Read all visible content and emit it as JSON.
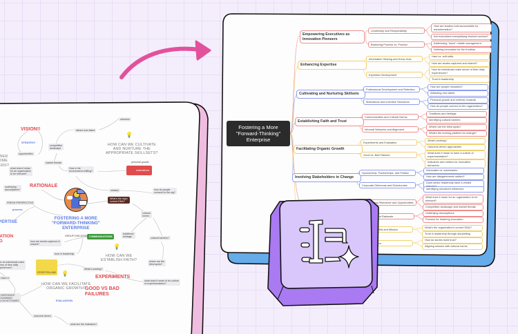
{
  "right_map": {
    "central_topic": "Fostering a More \"Forward-Thinking\" Enterprise",
    "branches": [
      {
        "label": "Empowering Executives as Innovation Pioneers",
        "color": "#ef8d8d",
        "subtopics": [
          {
            "label": "Leadership and Responsibility",
            "questions": [
              "How are leaders held accountable for transformation?",
              "Are executives exemplifying desired conduct?"
            ]
          },
          {
            "label": "Balancing Process vs. Product",
            "questions": [
              "Addressing \"stuck\" middle management",
              "Defining innovation for the frontline"
            ]
          }
        ]
      },
      {
        "label": "Enhancing Expertise",
        "color": "#f2cf6e",
        "subtopics": [
          {
            "label": "Information Sharing and Know-How",
            "questions": [
              "Hard vs. soft skills",
              "How are stories captured and shared?"
            ]
          },
          {
            "label": "Expertise Development",
            "questions": [
              "How do individuals make sense of their daily experiences?",
              "Trust in leadership"
            ]
          }
        ]
      },
      {
        "label": "Cultivating and Nurturing Skillsets",
        "color": "#8d9cf0",
        "subtopics": [
          {
            "label": "Professional Development and Retention",
            "questions": [
              "How are people rewarded?",
              "Attracting new talent"
            ]
          },
          {
            "label": "Motivations and Incentive Structures",
            "questions": [
              "Personal growth and extrinsic rewards",
              "How do people connect to the organization?"
            ]
          }
        ]
      },
      {
        "label": "Establishing Faith and Trust",
        "color": "#ef8d8d",
        "subtopics": [
          {
            "label": "Communication and Cultural Norms",
            "questions": [
              "Traditions and heritage",
              "Identifying cultural barriers"
            ]
          },
          {
            "label": "Informal Networks and Alignment",
            "questions": [
              "Where are the blind spots?",
              "What's the burning platform for change?"
            ]
          }
        ]
      },
      {
        "label": "Facilitating Organic Growth",
        "color": "#f2cf6e",
        "subtopics": [
          {
            "label": "Experiments and Evaluation",
            "questions": [
              "What's working?",
              "Outcome-driven approaches"
            ]
          },
          {
            "label": "Good vs. Bad Failures",
            "questions": [
              "What does it mean to have a culture of experimentation?",
              "Indicators and metrics for innovative behaviors"
            ]
          }
        ]
      },
      {
        "label": "Involving Stakeholders in Change",
        "color": "#8d9cf0",
        "subtopics": [
          {
            "label": "Sponsorship, Partnerships, and Politics",
            "questions": [
              "Advocates vs. adversaries",
              "How are disagreements settled?"
            ]
          },
          {
            "label": "Corporate Dilemmas and Dichotomies",
            "questions": [
              "Does senior leadership have a vested interest?",
              "Identifying unnoticed influences"
            ]
          }
        ]
      },
      {
        "label": "",
        "color": "#ef8d8d",
        "subtopics": [
          {
            "label": "Understanding Relevance and Opportunities",
            "questions": [
              "What does it mean for an organization to be relevant?",
              "Competitive landscape and market threats"
            ]
          },
          {
            "label": "Perspectives and Rationale",
            "questions": [
              "Underlying assumptions",
              "Process for fostering innovation"
            ]
          }
        ]
      },
      {
        "label": "",
        "color": "#f2cf6e",
        "subtopics": [
          {
            "label": "Organizational DNA and Mission",
            "questions": [
              "What's the organization's current DNA?",
              "Trust in leadership through storytelling"
            ]
          },
          {
            "label": "ation and Tradition",
            "questions": [
              "How do stories build trust?",
              "Aligning mission with cultural norms"
            ]
          }
        ]
      }
    ]
  },
  "left_map": {
    "nodes": [
      {
        "text": "VISION!!",
        "style": "red-heading"
      },
      {
        "text": "STRATEGY",
        "style": "blue-label"
      },
      {
        "text": "WER\nOME\nERS?",
        "style": "question"
      },
      {
        "text": "opportunities",
        "style": "gray"
      },
      {
        "text": "competitive\nlandscape",
        "style": "gray"
      },
      {
        "text": "attract new talent",
        "style": "gray"
      },
      {
        "text": "retention",
        "style": "gray"
      },
      {
        "text": "market threats",
        "style": "gray"
      },
      {
        "text": "what does it mean\nfor an organization\nto be relevant?",
        "style": "gray"
      },
      {
        "text": "How is the\nenvironment shifting?",
        "style": "gray"
      },
      {
        "text": "HOW CAN WE CULTIVATE\nAND NURTURE THE\nAPPROPRIATE SKILLSETS?",
        "style": "question"
      },
      {
        "text": "personal growth",
        "style": "plain"
      },
      {
        "text": "motivations",
        "style": "red-box"
      },
      {
        "text": "underlying\nassumptions?",
        "style": "gray"
      },
      {
        "text": "RATIONALE",
        "style": "red-heading"
      },
      {
        "text": "mission",
        "style": "gray"
      },
      {
        "text": "how do people\nconnect to the org?",
        "style": "gray"
      },
      {
        "text": "What's the org's\ncurrent DNA?",
        "style": "brown-box"
      },
      {
        "text": "FRESH PERSPECTIVE",
        "style": "gray"
      },
      {
        "text": "process",
        "style": "blue-label"
      },
      {
        "text": "cultural\nnorms",
        "style": "gray"
      },
      {
        "text": "FOSTERING A MORE\n\"FORWARD-THINKING\"\nENTERPRISE",
        "style": "central"
      },
      {
        "text": "PERTISE",
        "style": "blue-heading"
      },
      {
        "text": "GROUP DISCUSSION",
        "style": "plain"
      },
      {
        "text": "COMMUNICATIONS",
        "style": "green-box"
      },
      {
        "text": "traditions/\nheritage",
        "style": "gray"
      },
      {
        "text": "MATION\nNG",
        "style": "red-heading"
      },
      {
        "text": "how are stories captured &\nshared?",
        "style": "gray"
      },
      {
        "text": "cultural barriers?",
        "style": "gray"
      },
      {
        "text": "trust in leadership",
        "style": "gray"
      },
      {
        "text": "HOW CAN WE\nESTABLISH FAITH?",
        "style": "question"
      },
      {
        "text": "w do individuals make\nnse of their daily\nperiences?",
        "style": "gray"
      },
      {
        "text": "where are the\nblind spots?",
        "style": "gray"
      },
      {
        "text": "STORYTELLING",
        "style": "yellow-box"
      },
      {
        "text": "What's working?",
        "style": "gray"
      },
      {
        "text": "EXPERIMENTS",
        "style": "red-heading"
      },
      {
        "text": "HOW CAN WE FACILITATE\nORGANIC GROWTH?",
        "style": "question"
      },
      {
        "text": "what does it mean to be culture\nof experimentation?",
        "style": "gray"
      },
      {
        "text": "ip have a",
        "style": "gray"
      },
      {
        "text": "GOOD VS BAD\nFAILURES",
        "style": "red-heading"
      },
      {
        "text": "CORPORATE\nDILEMMAS\n& DICHOTOMIES",
        "style": "gray"
      },
      {
        "text": "EVALUATION",
        "style": "blue-label"
      },
      {
        "text": "outcome-driven",
        "style": "gray"
      },
      {
        "text": "what are the indicators?",
        "style": "gray"
      }
    ]
  },
  "colors": {
    "background": "#f4eefc",
    "arrow": "#e2529c",
    "left_card_side": "#f0bde0",
    "right_card_side": "#66abea",
    "keycap_top": "#d9c6fb",
    "keycap_side": "#a97af2"
  },
  "icons": [
    "curved-arrow-icon",
    "lightbulb-icon",
    "idea-illustration-icon",
    "ai-text-keycap-icon",
    "sparkle-icon"
  ]
}
